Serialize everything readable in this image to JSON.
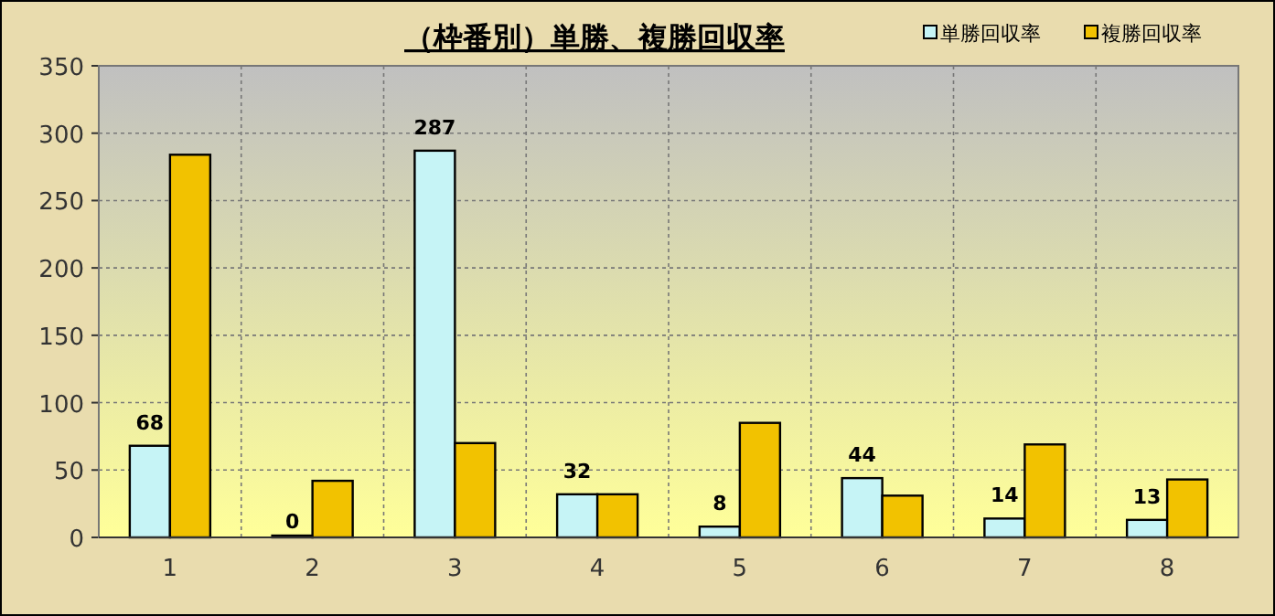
{
  "chart_data": {
    "type": "bar",
    "title": "（枠番別）単勝、複勝回収率",
    "categories": [
      "1",
      "2",
      "3",
      "4",
      "5",
      "6",
      "7",
      "8"
    ],
    "series": [
      {
        "name": "単勝回収率",
        "color": "#c6f4f6",
        "values": [
          68,
          0,
          287,
          32,
          8,
          44,
          14,
          13
        ],
        "value_labels": [
          "68",
          "0",
          "287",
          "32",
          "8",
          "44",
          "14",
          "13"
        ]
      },
      {
        "name": "複勝回収率",
        "color": "#f2c200",
        "values": [
          284,
          42,
          70,
          32,
          85,
          31,
          69,
          43
        ]
      }
    ],
    "ylim": [
      0,
      350
    ],
    "yticks": [
      0,
      50,
      100,
      150,
      200,
      250,
      300,
      350
    ],
    "grid": true,
    "legend": "top right"
  }
}
